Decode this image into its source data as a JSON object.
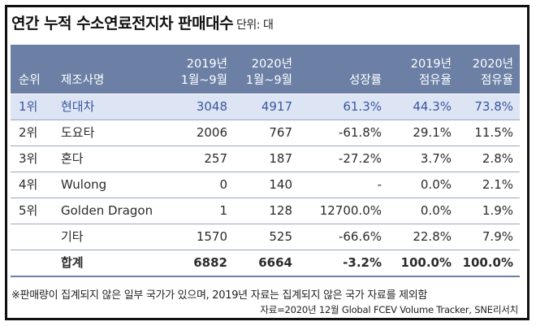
{
  "title": "연간 누적 수소연료전지차 판매대수",
  "unit_label": "단위: 대",
  "header": {
    "rank": "순위",
    "maker": "제조사명",
    "y2019_line1": "2019년",
    "y2019_line2": "1월~9월",
    "y2020_line1": "2020년",
    "y2020_line2": "1월~9월",
    "growth": "성장률",
    "share2019_line1": "2019년",
    "share2019_line2": "점유율",
    "share2020_line1": "2020년",
    "share2020_line2": "점유율"
  },
  "rows": [
    {
      "rank": "1위",
      "maker": "현대차",
      "y2019": "3048",
      "y2020": "4917",
      "growth": "61.3%",
      "share2019": "44.3%",
      "share2020": "73.8%"
    },
    {
      "rank": "2위",
      "maker": "도요타",
      "y2019": "2006",
      "y2020": "767",
      "growth": "-61.8%",
      "share2019": "29.1%",
      "share2020": "11.5%"
    },
    {
      "rank": "3위",
      "maker": "혼다",
      "y2019": "257",
      "y2020": "187",
      "growth": "-27.2%",
      "share2019": "3.7%",
      "share2020": "2.8%"
    },
    {
      "rank": "4위",
      "maker": "Wulong",
      "y2019": "0",
      "y2020": "140",
      "growth": "-",
      "share2019": "0.0%",
      "share2020": "2.1%"
    },
    {
      "rank": "5위",
      "maker": "Golden Dragon",
      "y2019": "1",
      "y2020": "128",
      "growth": "12700.0%",
      "share2019": "0.0%",
      "share2020": "1.9%"
    },
    {
      "rank": "",
      "maker": "기타",
      "y2019": "1570",
      "y2020": "525",
      "growth": "-66.6%",
      "share2019": "22.8%",
      "share2020": "7.9%"
    },
    {
      "rank": "",
      "maker": "합계",
      "y2019": "6882",
      "y2020": "6664",
      "growth": "-3.2%",
      "share2019": "100.0%",
      "share2020": "100.0%"
    }
  ],
  "note": "※판매량이 집계되지 않은 일부 국가가 있으며, 2019년 자료는 집계되지 않은 국가 자료를 제외함",
  "source": "자료=2020년 12월 Global FCEV Volume Tracker, SNE리서치",
  "colors": {
    "header_bg": "#6b80a4",
    "highlight_bg": "#dde5f4",
    "highlight_text": "#3a57a0"
  }
}
